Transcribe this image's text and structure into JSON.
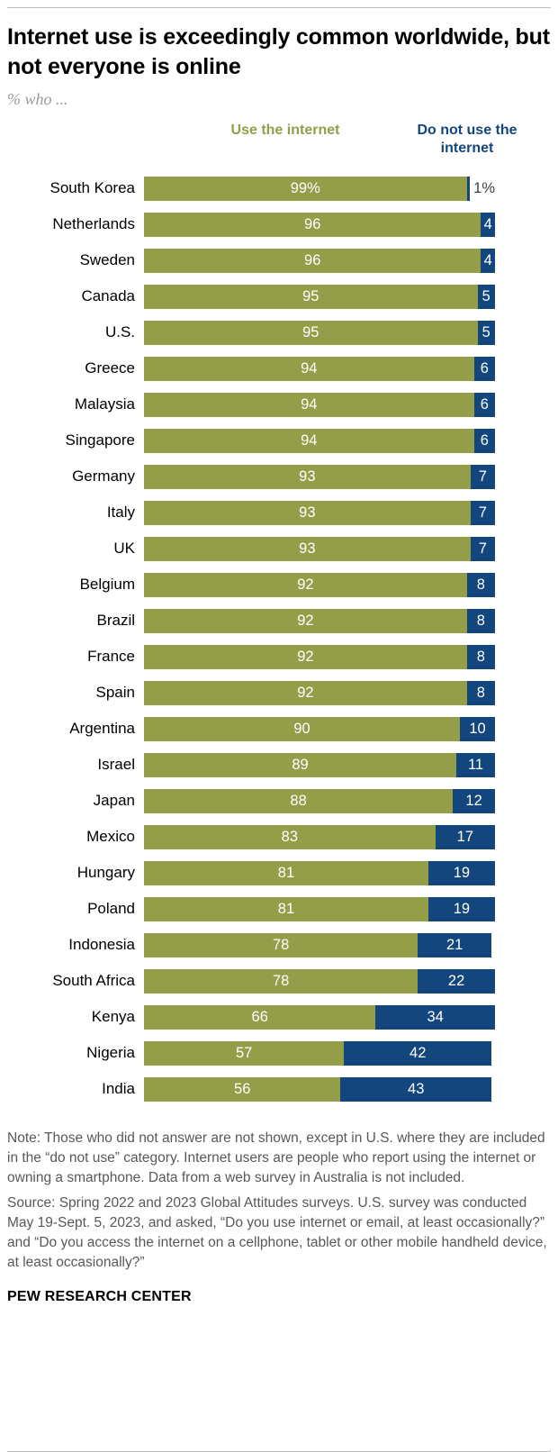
{
  "colors": {
    "green": "#949d48",
    "blue": "#14467e",
    "note_gray": "#58585a",
    "rule_gray": "#bdbdbd"
  },
  "header": {
    "title": "Internet use is exceedingly common worldwide, but not everyone is online",
    "subtitle": "% who ..."
  },
  "legend": {
    "use_label": "Use the internet",
    "not_use_label": "Do not use the internet"
  },
  "chart_data": {
    "type": "bar",
    "orientation": "horizontal",
    "stacked": true,
    "xlim": [
      0,
      100
    ],
    "grid": false,
    "legend_position": "top",
    "categories": [
      "South Korea",
      "Netherlands",
      "Sweden",
      "Canada",
      "U.S.",
      "Greece",
      "Malaysia",
      "Singapore",
      "Germany",
      "Italy",
      "UK",
      "Belgium",
      "Brazil",
      "France",
      "Spain",
      "Argentina",
      "Israel",
      "Japan",
      "Mexico",
      "Hungary",
      "Poland",
      "Indonesia",
      "South Africa",
      "Kenya",
      "Nigeria",
      "India"
    ],
    "series": [
      {
        "name": "Use the internet",
        "color": "#949d48",
        "values": [
          99,
          96,
          96,
          95,
          95,
          94,
          94,
          94,
          93,
          93,
          93,
          92,
          92,
          92,
          92,
          90,
          89,
          88,
          83,
          81,
          81,
          78,
          78,
          66,
          57,
          56
        ],
        "labels": [
          "99%",
          "96",
          "96",
          "95",
          "95",
          "94",
          "94",
          "94",
          "93",
          "93",
          "93",
          "92",
          "92",
          "92",
          "92",
          "90",
          "89",
          "88",
          "83",
          "81",
          "81",
          "78",
          "78",
          "66",
          "57",
          "56"
        ]
      },
      {
        "name": "Do not use the internet",
        "color": "#14467e",
        "values": [
          1,
          4,
          4,
          5,
          5,
          6,
          6,
          6,
          7,
          7,
          7,
          8,
          8,
          8,
          8,
          10,
          11,
          12,
          17,
          19,
          19,
          21,
          22,
          34,
          42,
          43
        ],
        "labels": [
          "1%",
          "4",
          "4",
          "5",
          "5",
          "6",
          "6",
          "6",
          "7",
          "7",
          "7",
          "8",
          "8",
          "8",
          "8",
          "10",
          "11",
          "12",
          "17",
          "19",
          "19",
          "21",
          "22",
          "34",
          "42",
          "43"
        ]
      }
    ]
  },
  "footer": {
    "note": "Note: Those who did not answer are not shown, except in U.S. where they are included in the “do not use” category. Internet users are people who report using the internet or owning a smartphone. Data from a web survey in Australia is not included.",
    "source": "Source: Spring 2022 and 2023 Global Attitudes surveys. U.S. survey was conducted May 19-Sept. 5, 2023, and asked, “Do you use internet or email, at least occasionally?” and “Do you access the internet on a cellphone, tablet or other mobile handheld device, at least occasionally?”",
    "brand": "PEW RESEARCH CENTER"
  }
}
